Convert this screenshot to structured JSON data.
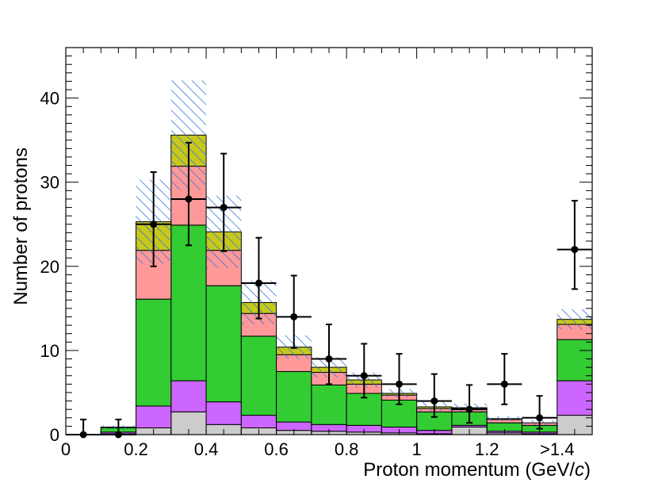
{
  "chart_data": {
    "type": "bar",
    "xlabel_main": "Proton momentum (GeV/",
    "xlabel_italic": "c",
    "xlabel_close": ")",
    "ylabel": "Number of protons",
    "xlim": [
      0,
      1.5
    ],
    "ylim": [
      0,
      46
    ],
    "bin_edges": [
      0,
      0.1,
      0.2,
      0.3,
      0.4,
      0.5,
      0.6,
      0.7,
      0.8,
      0.9,
      1.0,
      1.1,
      1.2,
      1.3,
      1.4,
      1.5
    ],
    "x_ticks": [
      {
        "value": 0,
        "label": "0"
      },
      {
        "value": 0.2,
        "label": "0.2"
      },
      {
        "value": 0.4,
        "label": "0.4"
      },
      {
        "value": 0.6,
        "label": "0.6"
      },
      {
        "value": 0.8,
        "label": "0.8"
      },
      {
        "value": 1.0,
        "label": "1"
      },
      {
        "value": 1.2,
        "label": "1.2"
      },
      {
        "value": 1.4,
        "label": ">1.4"
      }
    ],
    "y_ticks": [
      {
        "value": 0,
        "label": "0"
      },
      {
        "value": 10,
        "label": "10"
      },
      {
        "value": 20,
        "label": "20"
      },
      {
        "value": 30,
        "label": "30"
      },
      {
        "value": 40,
        "label": "40"
      }
    ],
    "stacked_series": [
      {
        "color": "#cccccc",
        "values": [
          0,
          0.1,
          0.8,
          2.7,
          1.2,
          0.8,
          0.5,
          0.4,
          0.3,
          0.2,
          0.1,
          0.9,
          0.2,
          0.1,
          2.3
        ]
      },
      {
        "color": "#cc66ff",
        "values": [
          0,
          0.2,
          2.6,
          3.7,
          2.7,
          1.5,
          1.0,
          0.8,
          0.8,
          0.7,
          0.4,
          0.2,
          0.2,
          0.2,
          4.1
        ]
      },
      {
        "color": "#33cc33",
        "values": [
          0,
          0.5,
          12.7,
          18.5,
          13.8,
          9.4,
          6.0,
          4.7,
          3.8,
          3.2,
          2.2,
          1.6,
          1.0,
          0.8,
          4.9
        ]
      },
      {
        "color": "#ff9999",
        "values": [
          0,
          0.1,
          5.8,
          7.0,
          4.2,
          2.7,
          2.0,
          1.5,
          1.1,
          0.6,
          0.4,
          0.4,
          0.4,
          0.3,
          1.8
        ]
      },
      {
        "color": "#c8c81a",
        "values": [
          0,
          0,
          3.4,
          3.7,
          2.2,
          1.3,
          0.9,
          0.6,
          0.5,
          0.2,
          0.2,
          0.1,
          0.1,
          0,
          0.6
        ]
      }
    ],
    "mc_uncertainty": [
      0,
      0.2,
      5,
      6.5,
      4.3,
      2.6,
      1.4,
      1.2,
      0.9,
      0.5,
      0.6,
      0.5,
      0.3,
      0.3,
      1.2
    ],
    "data_points": [
      {
        "x": 0.05,
        "y": 0,
        "err_low": 0,
        "err_high": 1.8
      },
      {
        "x": 0.15,
        "y": 0,
        "err_low": 0,
        "err_high": 1.8
      },
      {
        "x": 0.25,
        "y": 25,
        "err_low": 5.0,
        "err_high": 6.2
      },
      {
        "x": 0.35,
        "y": 28,
        "err_low": 5.5,
        "err_high": 6.7
      },
      {
        "x": 0.45,
        "y": 27,
        "err_low": 5.2,
        "err_high": 6.4
      },
      {
        "x": 0.55,
        "y": 18,
        "err_low": 4.2,
        "err_high": 5.4
      },
      {
        "x": 0.65,
        "y": 14,
        "err_low": 3.7,
        "err_high": 4.9
      },
      {
        "x": 0.75,
        "y": 9,
        "err_low": 3.0,
        "err_high": 4.1
      },
      {
        "x": 0.85,
        "y": 7,
        "err_low": 2.6,
        "err_high": 3.8
      },
      {
        "x": 0.95,
        "y": 6,
        "err_low": 2.4,
        "err_high": 3.6
      },
      {
        "x": 1.05,
        "y": 4,
        "err_low": 1.9,
        "err_high": 3.2
      },
      {
        "x": 1.15,
        "y": 3,
        "err_low": 1.6,
        "err_high": 2.9
      },
      {
        "x": 1.25,
        "y": 6,
        "err_low": 2.4,
        "err_high": 3.6
      },
      {
        "x": 1.35,
        "y": 2,
        "err_low": 1.3,
        "err_high": 2.6
      },
      {
        "x": 1.45,
        "y": 22,
        "err_low": 4.7,
        "err_high": 5.8
      }
    ],
    "legend": "none",
    "grid": false
  }
}
